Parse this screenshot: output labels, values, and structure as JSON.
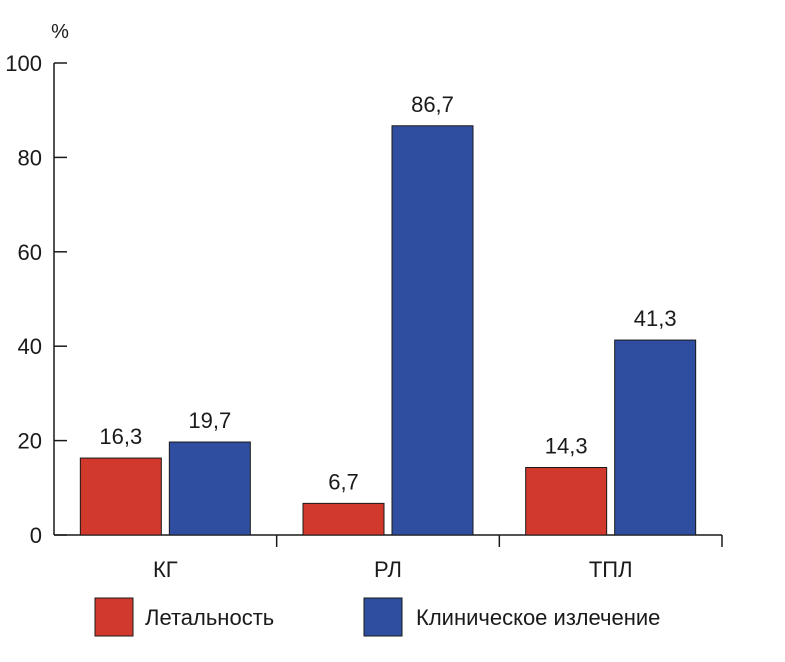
{
  "chart_data": {
    "type": "bar",
    "title": "",
    "xlabel": "",
    "ylabel": "%",
    "ylim": [
      0,
      100
    ],
    "yticks": [
      0,
      20,
      40,
      60,
      80,
      100
    ],
    "categories": [
      "КГ",
      "РЛ",
      "ТПЛ"
    ],
    "series": [
      {
        "name": "Летальность",
        "color": "#d0392b",
        "values": [
          16.3,
          6.7,
          14.3
        ],
        "labels": [
          "16,3",
          "6,7",
          "14,3"
        ]
      },
      {
        "name": "Клиническое излечение",
        "color": "#2f4ea0",
        "values": [
          19.7,
          86.7,
          41.3
        ],
        "labels": [
          "19,7",
          "86,7",
          "41,3"
        ]
      }
    ],
    "grid": false,
    "legend_position": "bottom"
  }
}
